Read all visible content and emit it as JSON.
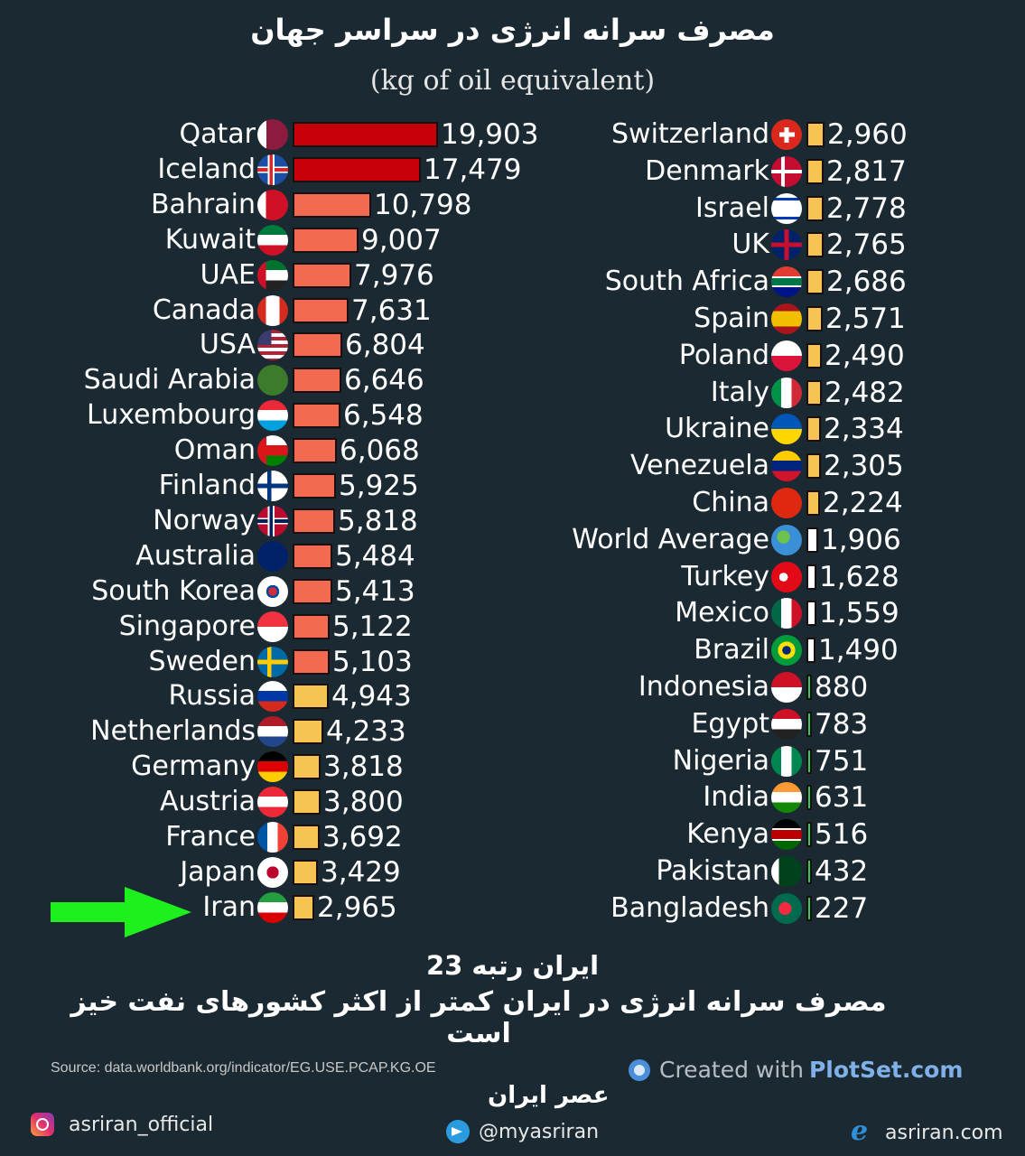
{
  "header": {
    "title_fa": "مصرف سرانه انرژی در سراسر جهان",
    "subtitle": "(kg of oil equivalent)"
  },
  "chart_data": {
    "type": "bar",
    "orientation": "horizontal",
    "title": "مصرف سرانه انرژی در سراسر جهان",
    "subtitle": "(kg of oil equivalent)",
    "xlabel": "",
    "ylabel": "",
    "unit": "kg of oil equivalent per capita",
    "grid": false,
    "legend": null,
    "color_bands": [
      {
        "range": "> 15000",
        "color": "#c8000a"
      },
      {
        "range": "5000-15000",
        "color": "#f26a4f"
      },
      {
        "range": "2000-5000",
        "color": "#f7c453"
      },
      {
        "range": "1000-2000",
        "color": "#ffffff"
      },
      {
        "range": "< 1000",
        "color": "#2ecc55"
      }
    ],
    "categories": [
      "Qatar",
      "Iceland",
      "Bahrain",
      "Kuwait",
      "UAE",
      "Canada",
      "USA",
      "Saudi Arabia",
      "Luxembourg",
      "Oman",
      "Finland",
      "Norway",
      "Australia",
      "South Korea",
      "Singapore",
      "Sweden",
      "Russia",
      "Netherlands",
      "Germany",
      "Austria",
      "France",
      "Japan",
      "Iran",
      "Switzerland",
      "Denmark",
      "Israel",
      "UK",
      "South Africa",
      "Spain",
      "Poland",
      "Italy",
      "Ukraine",
      "Venezuela",
      "China",
      "World Average",
      "Turkey",
      "Mexico",
      "Brazil",
      "Indonesia",
      "Egypt",
      "Nigeria",
      "India",
      "Kenya",
      "Pakistan",
      "Bangladesh"
    ],
    "values": [
      19903,
      17479,
      10798,
      9007,
      7976,
      7631,
      6804,
      6646,
      6548,
      6068,
      5925,
      5818,
      5484,
      5413,
      5122,
      5103,
      4943,
      4233,
      3818,
      3800,
      3692,
      3429,
      2965,
      2960,
      2817,
      2778,
      2765,
      2686,
      2571,
      2490,
      2482,
      2334,
      2305,
      2224,
      1906,
      1628,
      1559,
      1490,
      880,
      783,
      751,
      631,
      516,
      432,
      227
    ],
    "highlight": {
      "category": "Iran",
      "rank": 23,
      "marker": "green-arrow"
    }
  },
  "left_column": [
    {
      "country": "Qatar",
      "value": 19903,
      "display": "19,903",
      "color": "#c8000a",
      "flag": "qatar"
    },
    {
      "country": "Iceland",
      "value": 17479,
      "display": "17,479",
      "color": "#c8000a",
      "flag": "iceland"
    },
    {
      "country": "Bahrain",
      "value": 10798,
      "display": "10,798",
      "color": "#f26a4f",
      "flag": "bahrain"
    },
    {
      "country": "Kuwait",
      "value": 9007,
      "display": "9,007",
      "color": "#f26a4f",
      "flag": "kuwait"
    },
    {
      "country": "UAE",
      "value": 7976,
      "display": "7,976",
      "color": "#f26a4f",
      "flag": "uae"
    },
    {
      "country": "Canada",
      "value": 7631,
      "display": "7,631",
      "color": "#f26a4f",
      "flag": "canada"
    },
    {
      "country": "USA",
      "value": 6804,
      "display": "6,804",
      "color": "#f26a4f",
      "flag": "usa"
    },
    {
      "country": "Saudi Arabia",
      "value": 6646,
      "display": "6,646",
      "color": "#f26a4f",
      "flag": "saudi"
    },
    {
      "country": "Luxembourg",
      "value": 6548,
      "display": "6,548",
      "color": "#f26a4f",
      "flag": "luxembourg"
    },
    {
      "country": "Oman",
      "value": 6068,
      "display": "6,068",
      "color": "#f26a4f",
      "flag": "oman"
    },
    {
      "country": "Finland",
      "value": 5925,
      "display": "5,925",
      "color": "#f26a4f",
      "flag": "finland"
    },
    {
      "country": "Norway",
      "value": 5818,
      "display": "5,818",
      "color": "#f26a4f",
      "flag": "norway"
    },
    {
      "country": "Australia",
      "value": 5484,
      "display": "5,484",
      "color": "#f26a4f",
      "flag": "australia"
    },
    {
      "country": "South Korea",
      "value": 5413,
      "display": "5,413",
      "color": "#f26a4f",
      "flag": "southkorea"
    },
    {
      "country": "Singapore",
      "value": 5122,
      "display": "5,122",
      "color": "#f26a4f",
      "flag": "singapore"
    },
    {
      "country": "Sweden",
      "value": 5103,
      "display": "5,103",
      "color": "#f26a4f",
      "flag": "sweden"
    },
    {
      "country": "Russia",
      "value": 4943,
      "display": "4,943",
      "color": "#f7c453",
      "flag": "russia"
    },
    {
      "country": "Netherlands",
      "value": 4233,
      "display": "4,233",
      "color": "#f7c453",
      "flag": "netherlands"
    },
    {
      "country": "Germany",
      "value": 3818,
      "display": "3,818",
      "color": "#f7c453",
      "flag": "germany"
    },
    {
      "country": "Austria",
      "value": 3800,
      "display": "3,800",
      "color": "#f7c453",
      "flag": "austria"
    },
    {
      "country": "France",
      "value": 3692,
      "display": "3,692",
      "color": "#f7c453",
      "flag": "france"
    },
    {
      "country": "Japan",
      "value": 3429,
      "display": "3,429",
      "color": "#f7c453",
      "flag": "japan"
    },
    {
      "country": "Iran",
      "value": 2965,
      "display": "2,965",
      "color": "#f7c453",
      "flag": "iran"
    }
  ],
  "right_column": [
    {
      "country": "Switzerland",
      "value": 2960,
      "display": "2,960",
      "color": "#f7c453",
      "flag": "switzerland"
    },
    {
      "country": "Denmark",
      "value": 2817,
      "display": "2,817",
      "color": "#f7c453",
      "flag": "denmark"
    },
    {
      "country": "Israel",
      "value": 2778,
      "display": "2,778",
      "color": "#f7c453",
      "flag": "israel"
    },
    {
      "country": "UK",
      "value": 2765,
      "display": "2,765",
      "color": "#f7c453",
      "flag": "uk"
    },
    {
      "country": "South Africa",
      "value": 2686,
      "display": "2,686",
      "color": "#f7c453",
      "flag": "southafrica"
    },
    {
      "country": "Spain",
      "value": 2571,
      "display": "2,571",
      "color": "#f7c453",
      "flag": "spain"
    },
    {
      "country": "Poland",
      "value": 2490,
      "display": "2,490",
      "color": "#f7c453",
      "flag": "poland"
    },
    {
      "country": "Italy",
      "value": 2482,
      "display": "2,482",
      "color": "#f7c453",
      "flag": "italy"
    },
    {
      "country": "Ukraine",
      "value": 2334,
      "display": "2,334",
      "color": "#f7c453",
      "flag": "ukraine"
    },
    {
      "country": "Venezuela",
      "value": 2305,
      "display": "2,305",
      "color": "#f7c453",
      "flag": "venezuela"
    },
    {
      "country": "China",
      "value": 2224,
      "display": "2,224",
      "color": "#f7c453",
      "flag": "china"
    },
    {
      "country": "World Average",
      "value": 1906,
      "display": "1,906",
      "color": "#ffffff",
      "flag": "world"
    },
    {
      "country": "Turkey",
      "value": 1628,
      "display": "1,628",
      "color": "#ffffff",
      "flag": "turkey"
    },
    {
      "country": "Mexico",
      "value": 1559,
      "display": "1,559",
      "color": "#ffffff",
      "flag": "mexico"
    },
    {
      "country": "Brazil",
      "value": 1490,
      "display": "1,490",
      "color": "#ffffff",
      "flag": "brazil"
    },
    {
      "country": "Indonesia",
      "value": 880,
      "display": "880",
      "color": "#2ecc55",
      "flag": "indonesia"
    },
    {
      "country": "Egypt",
      "value": 783,
      "display": "783",
      "color": "#2ecc55",
      "flag": "egypt"
    },
    {
      "country": "Nigeria",
      "value": 751,
      "display": "751",
      "color": "#2ecc55",
      "flag": "nigeria"
    },
    {
      "country": "India",
      "value": 631,
      "display": "631",
      "color": "#2ecc55",
      "flag": "india"
    },
    {
      "country": "Kenya",
      "value": 516,
      "display": "516",
      "color": "#2ecc55",
      "flag": "kenya"
    },
    {
      "country": "Pakistan",
      "value": 432,
      "display": "432",
      "color": "#2ecc55",
      "flag": "pakistan"
    },
    {
      "country": "Bangladesh",
      "value": 227,
      "display": "227",
      "color": "#2ecc55",
      "flag": "bangladesh"
    }
  ],
  "annotation": {
    "arrow_color": "#1ef01e",
    "arrow_target": "Iran"
  },
  "caption": {
    "line1_fa": "ایران رتبه 23",
    "line2_fa": "مصرف سرانه انرژی در ایران کمتر از اکثر کشورهای نفت خیز است"
  },
  "footer": {
    "source": "Source: data.worldbank.org/indicator/EG.USE.PCAP.KG.OE",
    "created_with_prefix": "Created with",
    "created_with_brand": "PlotSet.com",
    "brand_fa": "عصر ایران",
    "instagram": "asriran_official",
    "telegram": "@myasriran",
    "website": "asriran.com"
  },
  "colors": {
    "background": "#1b2a32",
    "text": "#ffffff",
    "bar_dark_red": "#c8000a",
    "bar_salmon": "#f26a4f",
    "bar_yellow": "#f7c453",
    "bar_white": "#ffffff",
    "bar_green": "#2ecc55"
  }
}
